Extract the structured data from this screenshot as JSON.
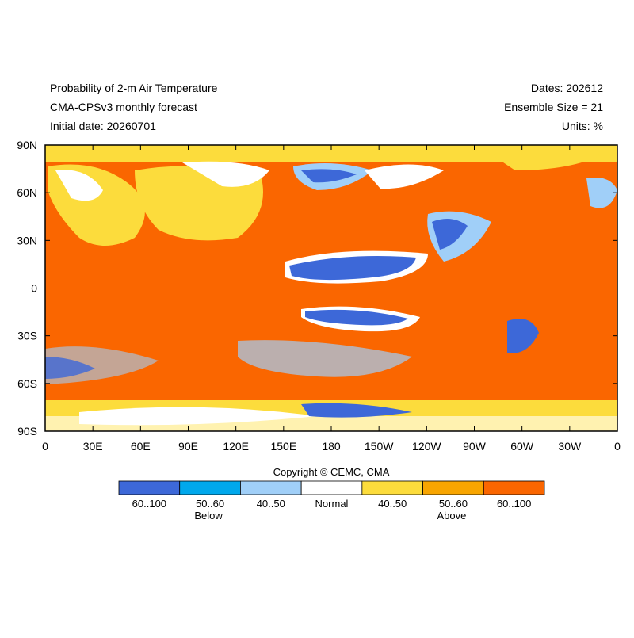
{
  "header": {
    "left": [
      "Probability of 2-m Air Temperature",
      "CMA-CPSv3 monthly forecast",
      "Initial date: 20260701"
    ],
    "right": [
      "Dates: 202612",
      "Ensemble Size = 21",
      "Units: %"
    ]
  },
  "map": {
    "lat_labels": [
      "90N",
      "60N",
      "30N",
      "0",
      "30S",
      "60S",
      "90S"
    ],
    "lon_labels": [
      "0",
      "30E",
      "60E",
      "90E",
      "120E",
      "150E",
      "180",
      "150W",
      "120W",
      "90W",
      "60W",
      "30W",
      "0"
    ]
  },
  "legend": {
    "copyright": "Copyright © CEMC, CMA",
    "items": [
      {
        "label": "60..100",
        "color": "#3d68d8"
      },
      {
        "label": "50..60",
        "color": "#00a8ec"
      },
      {
        "label": "40..50",
        "color": "#a0cff8"
      },
      {
        "label": "Normal",
        "color": "#ffffff"
      },
      {
        "label": "40..50",
        "color": "#fcdc3c"
      },
      {
        "label": "50..60",
        "color": "#f8a500"
      },
      {
        "label": "60..100",
        "color": "#fa6600"
      }
    ],
    "groups": [
      "Below",
      "Above"
    ]
  }
}
